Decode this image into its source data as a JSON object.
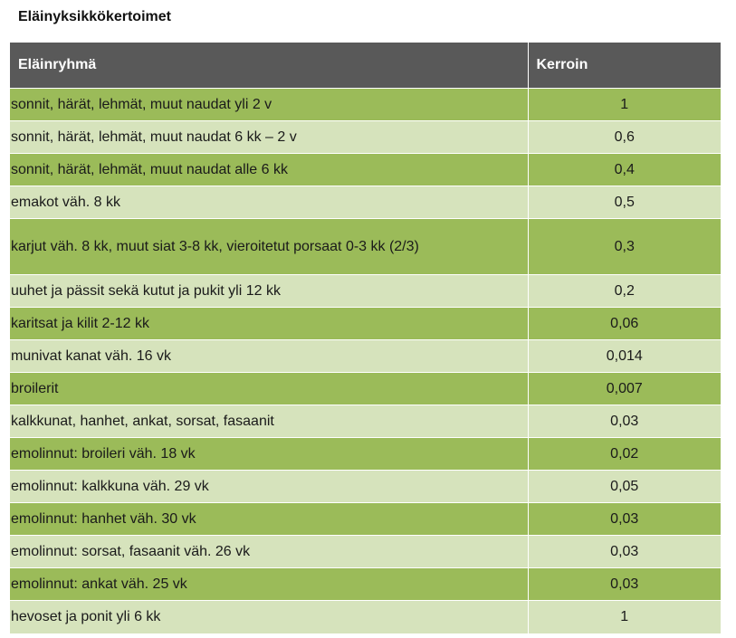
{
  "title": "Eläinyksikkökertoimet",
  "table": {
    "headers": {
      "group": "Eläinryhmä",
      "coefficient": "Kerroin"
    },
    "rows": [
      {
        "group": "sonnit, härät, lehmät, muut naudat yli 2 v",
        "coefficient": "1"
      },
      {
        "group": "sonnit, härät, lehmät, muut naudat 6 kk – 2 v",
        "coefficient": "0,6"
      },
      {
        "group": "sonnit, härät, lehmät, muut naudat alle 6 kk",
        "coefficient": "0,4"
      },
      {
        "group": "emakot väh. 8 kk",
        "coefficient": "0,5"
      },
      {
        "group": "karjut väh. 8 kk, muut siat 3-8 kk, vieroitetut porsaat 0-3 kk (2/3)",
        "coefficient": "0,3"
      },
      {
        "group": "uuhet ja pässit sekä kutut ja pukit yli 12 kk",
        "coefficient": "0,2"
      },
      {
        "group": "karitsat ja kilit 2-12 kk",
        "coefficient": "0,06"
      },
      {
        "group": "munivat kanat väh. 16 vk",
        "coefficient": "0,014"
      },
      {
        "group": "broilerit",
        "coefficient": "0,007"
      },
      {
        "group": "kalkkunat, hanhet, ankat, sorsat, fasaanit",
        "coefficient": "0,03"
      },
      {
        "group": "emolinnut: broileri väh. 18 vk",
        "coefficient": "0,02"
      },
      {
        "group": "emolinnut: kalkkuna väh. 29 vk",
        "coefficient": "0,05"
      },
      {
        "group": "emolinnut: hanhet väh. 30 vk",
        "coefficient": "0,03"
      },
      {
        "group": "emolinnut: sorsat, fasaanit väh. 26 vk",
        "coefficient": "0,03"
      },
      {
        "group": "emolinnut: ankat väh. 25 vk",
        "coefficient": "0,03"
      },
      {
        "group": "hevoset ja ponit yli 6 kk",
        "coefficient": "1"
      }
    ]
  },
  "colors": {
    "header_bg": "#595959",
    "row_dark": "#9bbb59",
    "row_light": "#d6e3bc"
  }
}
